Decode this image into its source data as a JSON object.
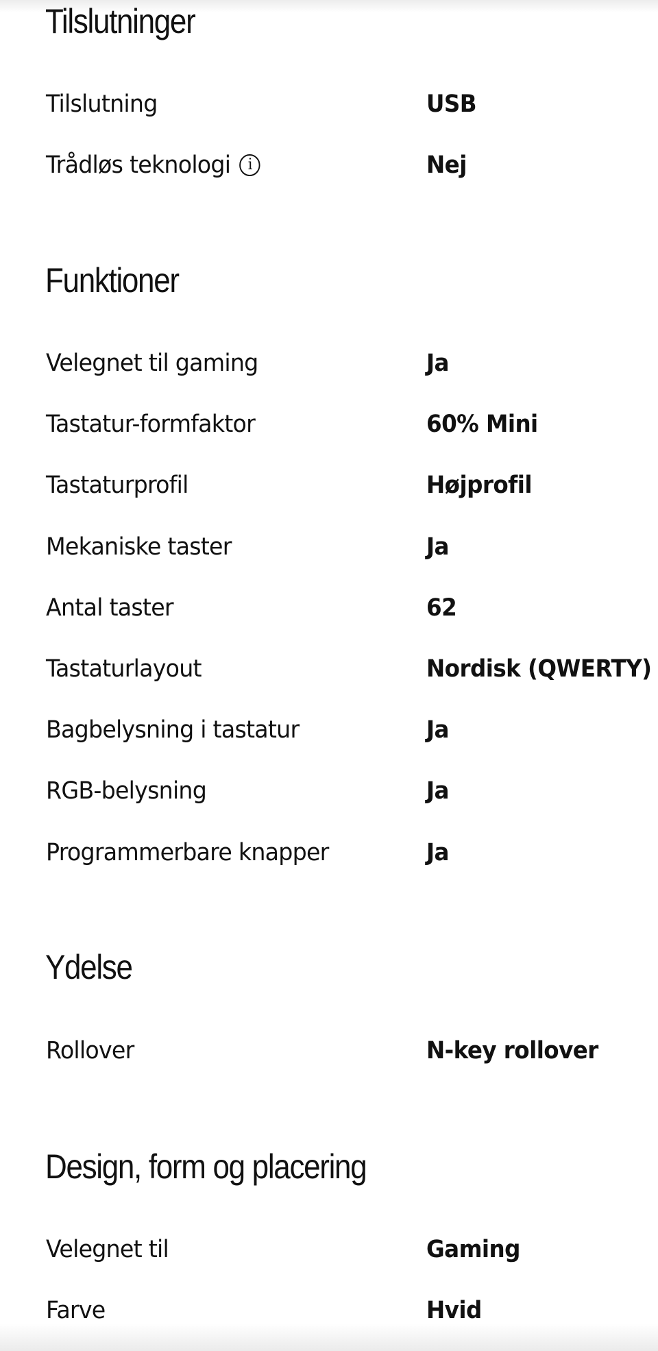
{
  "sections": [
    {
      "title": "Tilslutninger",
      "rows": [
        {
          "label": "Tilslutning",
          "value": "USB"
        },
        {
          "label": "Trådløs teknologi",
          "value": "Nej",
          "info_icon": "info-circle-icon"
        }
      ]
    },
    {
      "title": "Funktioner",
      "rows": [
        {
          "label": "Velegnet til gaming",
          "value": "Ja"
        },
        {
          "label": "Tastatur-formfaktor",
          "value": "60% Mini"
        },
        {
          "label": "Tastaturprofil",
          "value": "Højprofil"
        },
        {
          "label": "Mekaniske taster",
          "value": "Ja"
        },
        {
          "label": "Antal taster",
          "value": "62"
        },
        {
          "label": "Tastaturlayout",
          "value": "Nordisk (QWERTY)"
        },
        {
          "label": "Bagbelysning i tastatur",
          "value": "Ja"
        },
        {
          "label": "RGB-belysning",
          "value": "Ja"
        },
        {
          "label": "Programmerbare knapper",
          "value": "Ja"
        }
      ]
    },
    {
      "title": "Ydelse",
      "rows": [
        {
          "label": "Rollover",
          "value": "N-key rollover"
        }
      ]
    },
    {
      "title": "Design, form og placering",
      "rows": [
        {
          "label": "Velegnet til",
          "value": "Gaming"
        },
        {
          "label": "Farve",
          "value": "Hvid"
        }
      ]
    }
  ]
}
